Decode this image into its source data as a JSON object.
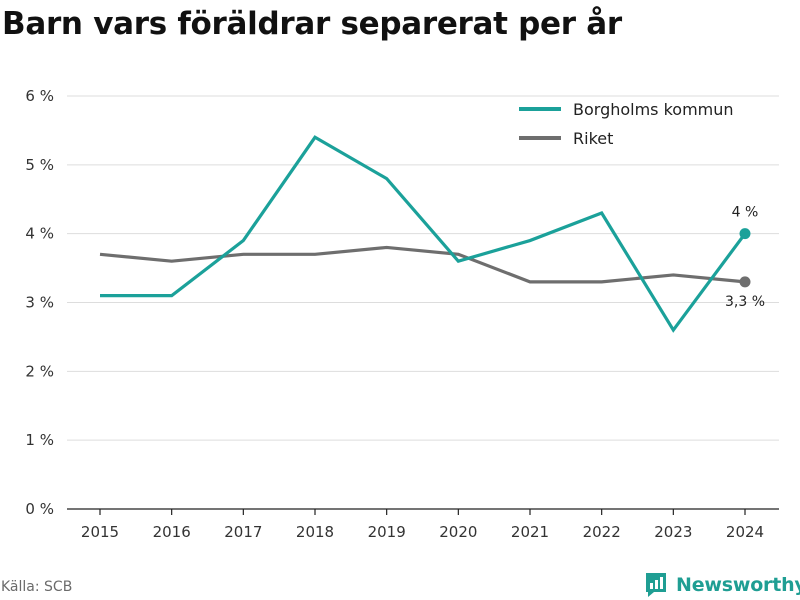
{
  "source": "Källa: SCB",
  "brand": "Newsworthy",
  "colors": {
    "borgholm": "#1ba19a",
    "riket": "#6e6e6e",
    "grid": "#dddddd",
    "brand": "#1f9e93"
  },
  "chart_data": {
    "type": "line",
    "title": "Barn vars föräldrar separerat per år",
    "x": [
      "2015",
      "2016",
      "2017",
      "2018",
      "2019",
      "2020",
      "2021",
      "2022",
      "2023",
      "2024"
    ],
    "y_ticks": [
      0,
      1,
      2,
      3,
      4,
      5,
      6
    ],
    "y_tick_labels": [
      "0 %",
      "1 %",
      "2 %",
      "3 %",
      "4 %",
      "5 %",
      "6 %"
    ],
    "ylim": [
      0,
      6
    ],
    "grid": true,
    "legend_position": "top-right",
    "series": [
      {
        "name": "Borgholms kommun",
        "color": "#1ba19a",
        "values": [
          3.1,
          3.1,
          3.9,
          5.4,
          4.8,
          3.6,
          3.9,
          4.3,
          2.6,
          4.0
        ],
        "end_label": "4 %"
      },
      {
        "name": "Riket",
        "color": "#6e6e6e",
        "values": [
          3.7,
          3.6,
          3.7,
          3.7,
          3.8,
          3.7,
          3.3,
          3.3,
          3.4,
          3.3
        ],
        "end_label": "3,3 %"
      }
    ]
  }
}
